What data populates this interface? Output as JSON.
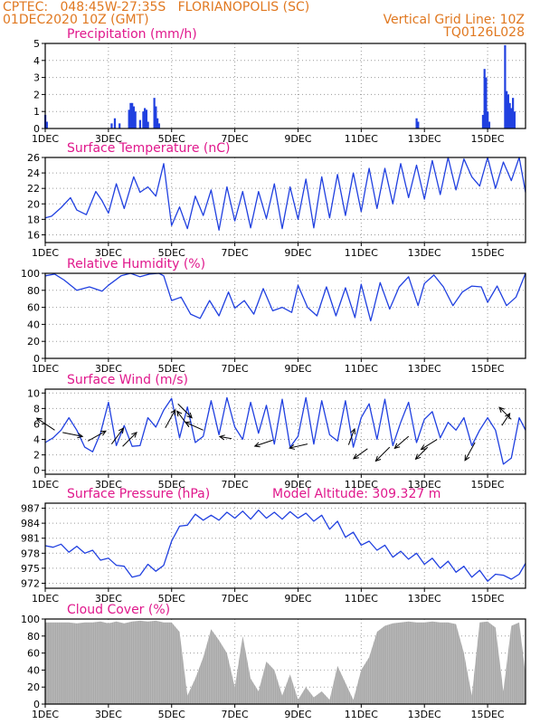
{
  "header": {
    "line1_left": "CPTEC:   048:45W-27:35S   FLORIANOPOLIS (SC)",
    "line2_left": "01DEC2020 10Z (GMT)",
    "line2_right": "Vertical Grid Line: 10Z",
    "line3_right": "TQ0126L028"
  },
  "colors": {
    "header": "#e07820",
    "title": "#e0188c",
    "series": "#2040e0",
    "cloud": "#a8a8a8",
    "grid": "#9a9a9a",
    "axis": "#000000"
  },
  "x_axis": {
    "ticks": [
      "1DEC",
      "3DEC",
      "5DEC",
      "7DEC",
      "9DEC",
      "11DEC",
      "13DEC",
      "15DEC"
    ],
    "tick_days": [
      1,
      3,
      5,
      7,
      9,
      11,
      13,
      15
    ],
    "range_days": [
      1,
      16.2
    ]
  },
  "chart_data": [
    {
      "type": "bar",
      "title": "Precipitation (mm/h)",
      "ylim": [
        0,
        5
      ],
      "yticks": [
        0,
        1,
        2,
        3,
        4,
        5
      ],
      "x": [
        1.0,
        1.05,
        3.1,
        3.2,
        3.35,
        3.65,
        3.7,
        3.75,
        3.8,
        3.85,
        4.0,
        4.1,
        4.15,
        4.2,
        4.25,
        4.45,
        4.5,
        4.55,
        4.6,
        12.75,
        12.8,
        14.85,
        14.9,
        14.95,
        15.0,
        15.05,
        15.55,
        15.6,
        15.65,
        15.7,
        15.75,
        15.8,
        15.85
      ],
      "values": [
        0.8,
        0.4,
        0.3,
        0.6,
        0.3,
        1.1,
        1.5,
        1.5,
        1.3,
        1.0,
        0.5,
        1.0,
        1.2,
        1.1,
        0.4,
        1.8,
        1.3,
        0.6,
        0.3,
        0.6,
        0.4,
        0.8,
        3.5,
        3.0,
        1.0,
        0.4,
        4.9,
        2.2,
        2.0,
        1.5,
        1.2,
        1.8,
        1.0
      ]
    },
    {
      "type": "line",
      "title": "Surface Temperature (nC)",
      "ylim": [
        15,
        26
      ],
      "yticks": [
        16,
        18,
        20,
        22,
        24,
        26
      ],
      "x": [
        1.0,
        1.2,
        1.5,
        1.8,
        2.0,
        2.3,
        2.6,
        2.8,
        3.0,
        3.25,
        3.5,
        3.8,
        4.0,
        4.25,
        4.5,
        4.75,
        5.0,
        5.25,
        5.5,
        5.75,
        6.0,
        6.25,
        6.5,
        6.75,
        7.0,
        7.25,
        7.5,
        7.75,
        8.0,
        8.25,
        8.5,
        8.75,
        9.0,
        9.25,
        9.5,
        9.75,
        10.0,
        10.25,
        10.5,
        10.75,
        11.0,
        11.25,
        11.5,
        11.75,
        12.0,
        12.25,
        12.5,
        12.75,
        13.0,
        13.25,
        13.5,
        13.75,
        14.0,
        14.25,
        14.5,
        14.75,
        15.0,
        15.25,
        15.5,
        15.75,
        16.0,
        16.2
      ],
      "values": [
        18.2,
        18.4,
        19.5,
        20.8,
        19.2,
        18.6,
        21.6,
        20.4,
        18.8,
        22.6,
        19.4,
        23.5,
        21.5,
        22.2,
        21.0,
        25.2,
        17.2,
        19.6,
        16.8,
        21.0,
        18.5,
        21.8,
        16.6,
        22.2,
        17.8,
        21.6,
        16.9,
        21.6,
        18.1,
        22.6,
        16.8,
        22.2,
        18.0,
        23.2,
        16.9,
        23.5,
        18.2,
        23.8,
        18.5,
        24.0,
        19.0,
        24.6,
        19.4,
        24.6,
        20.0,
        25.2,
        20.8,
        25.0,
        20.6,
        25.6,
        21.2,
        26.0,
        21.8,
        25.8,
        23.5,
        22.3,
        26.0,
        22.0,
        25.4,
        23.0,
        26.0,
        21.5
      ]
    },
    {
      "type": "line",
      "title": "Relative Humidity (%)",
      "ylim": [
        0,
        100
      ],
      "yticks": [
        0,
        20,
        40,
        60,
        80,
        100
      ],
      "x": [
        1.0,
        1.3,
        1.6,
        2.0,
        2.4,
        2.8,
        3.0,
        3.4,
        3.7,
        4.0,
        4.3,
        4.6,
        4.75,
        5.0,
        5.3,
        5.6,
        5.9,
        6.2,
        6.5,
        6.8,
        7.0,
        7.3,
        7.6,
        7.9,
        8.2,
        8.5,
        8.8,
        9.0,
        9.3,
        9.6,
        9.9,
        10.2,
        10.5,
        10.8,
        11.0,
        11.3,
        11.6,
        11.9,
        12.2,
        12.5,
        12.8,
        13.0,
        13.3,
        13.6,
        13.9,
        14.2,
        14.5,
        14.8,
        15.0,
        15.3,
        15.6,
        15.9,
        16.2
      ],
      "values": [
        97,
        99,
        92,
        80,
        84,
        79,
        86,
        97,
        101,
        96,
        99,
        100,
        97,
        68,
        72,
        52,
        47,
        68,
        50,
        78,
        59,
        68,
        52,
        82,
        56,
        60,
        54,
        86,
        60,
        50,
        84,
        50,
        83,
        48,
        87,
        44,
        89,
        58,
        84,
        96,
        62,
        88,
        98,
        84,
        62,
        78,
        85,
        84,
        66,
        85,
        62,
        72,
        100
      ]
    },
    {
      "type": "line",
      "title": "Surface Wind (m/s)",
      "ylim": [
        -0.5,
        10.5
      ],
      "yticks": [
        0,
        2,
        4,
        6,
        8,
        10
      ],
      "x": [
        1.0,
        1.25,
        1.5,
        1.75,
        2.0,
        2.25,
        2.5,
        2.75,
        3.0,
        3.25,
        3.5,
        3.75,
        4.0,
        4.25,
        4.5,
        4.75,
        5.0,
        5.25,
        5.5,
        5.75,
        6.0,
        6.25,
        6.5,
        6.75,
        7.0,
        7.25,
        7.5,
        7.75,
        8.0,
        8.25,
        8.5,
        8.75,
        9.0,
        9.25,
        9.5,
        9.75,
        10.0,
        10.25,
        10.5,
        10.75,
        11.0,
        11.25,
        11.5,
        11.75,
        12.0,
        12.25,
        12.5,
        12.75,
        13.0,
        13.25,
        13.5,
        13.75,
        14.0,
        14.25,
        14.5,
        14.75,
        15.0,
        15.25,
        15.5,
        15.75,
        16.0,
        16.2
      ],
      "values": [
        3.6,
        4.2,
        5.2,
        6.8,
        5.2,
        3.0,
        2.4,
        4.8,
        8.8,
        3.2,
        5.8,
        3.1,
        3.2,
        6.8,
        5.6,
        7.8,
        9.3,
        4.2,
        8.2,
        3.6,
        4.4,
        9.0,
        4.6,
        9.4,
        5.6,
        4.0,
        8.8,
        4.8,
        8.4,
        3.4,
        9.2,
        3.0,
        4.4,
        9.4,
        3.4,
        9.0,
        4.6,
        3.8,
        9.0,
        3.0,
        6.8,
        8.6,
        4.0,
        9.2,
        3.2,
        6.2,
        8.8,
        3.6,
        6.6,
        7.6,
        4.2,
        6.2,
        5.2,
        6.8,
        3.2,
        5.2,
        6.8,
        5.2,
        0.8,
        1.6,
        6.8,
        5.2
      ],
      "wind_arrows": [
        {
          "day": 1.3,
          "speed": 5.2,
          "u": -0.9,
          "v": 0.6
        },
        {
          "day": 1.55,
          "speed": 4.9,
          "u": 1.0,
          "v": -0.2
        },
        {
          "day": 2.35,
          "speed": 3.8,
          "u": 0.9,
          "v": 0.5
        },
        {
          "day": 3.1,
          "speed": 3.4,
          "u": 0.6,
          "v": 0.8
        },
        {
          "day": 3.45,
          "speed": 3.1,
          "u": 0.7,
          "v": 0.7
        },
        {
          "day": 4.8,
          "speed": 5.5,
          "u": 0.5,
          "v": 0.9
        },
        {
          "day": 5.2,
          "speed": 8.6,
          "u": 0.7,
          "v": -0.7
        },
        {
          "day": 5.55,
          "speed": 5.6,
          "u": -0.6,
          "v": 0.8
        },
        {
          "day": 6.0,
          "speed": 5.2,
          "u": -0.9,
          "v": 0.4
        },
        {
          "day": 6.9,
          "speed": 4.1,
          "u": -0.6,
          "v": 0.1
        },
        {
          "day": 8.2,
          "speed": 3.9,
          "u": -0.9,
          "v": -0.3
        },
        {
          "day": 9.3,
          "speed": 3.4,
          "u": -0.9,
          "v": -0.2
        },
        {
          "day": 10.6,
          "speed": 3.3,
          "u": 0.3,
          "v": 0.8
        },
        {
          "day": 11.2,
          "speed": 2.8,
          "u": -0.7,
          "v": -0.5
        },
        {
          "day": 11.9,
          "speed": 3.0,
          "u": -0.7,
          "v": -0.7
        },
        {
          "day": 12.5,
          "speed": 4.4,
          "u": -0.7,
          "v": -0.6
        },
        {
          "day": 13.1,
          "speed": 3.0,
          "u": -0.6,
          "v": -0.6
        },
        {
          "day": 13.4,
          "speed": 4.0,
          "u": -0.8,
          "v": -0.5
        },
        {
          "day": 14.6,
          "speed": 3.6,
          "u": -0.5,
          "v": -0.9
        },
        {
          "day": 15.45,
          "speed": 5.8,
          "u": 0.4,
          "v": 0.6
        },
        {
          "day": 15.75,
          "speed": 6.6,
          "u": -0.6,
          "v": 0.6
        }
      ]
    },
    {
      "type": "line",
      "title": "Surface Pressure (hPa)",
      "annotation": "Model Altitude: 309.327 m",
      "ylim": [
        971,
        988
      ],
      "yticks": [
        972,
        975,
        978,
        981,
        984,
        987
      ],
      "x": [
        1.0,
        1.25,
        1.5,
        1.75,
        2.0,
        2.25,
        2.5,
        2.75,
        3.0,
        3.25,
        3.5,
        3.75,
        4.0,
        4.25,
        4.5,
        4.75,
        5.0,
        5.25,
        5.5,
        5.75,
        6.0,
        6.25,
        6.5,
        6.75,
        7.0,
        7.25,
        7.5,
        7.75,
        8.0,
        8.25,
        8.5,
        8.75,
        9.0,
        9.25,
        9.5,
        9.75,
        10.0,
        10.25,
        10.5,
        10.75,
        11.0,
        11.25,
        11.5,
        11.75,
        12.0,
        12.25,
        12.5,
        12.75,
        13.0,
        13.25,
        13.5,
        13.75,
        14.0,
        14.25,
        14.5,
        14.75,
        15.0,
        15.25,
        15.5,
        15.75,
        16.0,
        16.2
      ],
      "values": [
        979.5,
        979.2,
        979.8,
        978.2,
        979.4,
        978.0,
        978.6,
        976.6,
        977.0,
        975.6,
        975.4,
        973.2,
        973.6,
        975.8,
        974.4,
        975.6,
        980.4,
        983.4,
        983.6,
        985.8,
        984.6,
        985.6,
        984.6,
        986.2,
        985.0,
        986.4,
        984.8,
        986.6,
        985.0,
        986.2,
        984.8,
        986.3,
        985.0,
        986.0,
        984.4,
        985.6,
        982.8,
        984.4,
        981.2,
        982.2,
        979.6,
        980.4,
        978.6,
        979.6,
        977.2,
        978.4,
        976.8,
        978.0,
        975.8,
        977.0,
        975.0,
        976.4,
        974.2,
        975.4,
        973.2,
        974.6,
        972.4,
        973.8,
        973.6,
        972.8,
        973.8,
        976.0
      ]
    },
    {
      "type": "area",
      "title": "Cloud Cover (%)",
      "ylim": [
        0,
        100
      ],
      "yticks": [
        0,
        20,
        40,
        60,
        80,
        100
      ],
      "x": [
        1.0,
        1.25,
        1.5,
        1.75,
        2.0,
        2.25,
        2.5,
        2.75,
        3.0,
        3.25,
        3.5,
        3.75,
        4.0,
        4.25,
        4.5,
        4.75,
        5.0,
        5.25,
        5.5,
        5.75,
        6.0,
        6.25,
        6.5,
        6.75,
        7.0,
        7.25,
        7.5,
        7.75,
        8.0,
        8.25,
        8.5,
        8.75,
        9.0,
        9.25,
        9.5,
        9.75,
        10.0,
        10.25,
        10.5,
        10.75,
        11.0,
        11.25,
        11.5,
        11.75,
        12.0,
        12.25,
        12.5,
        12.75,
        13.0,
        13.25,
        13.5,
        13.75,
        14.0,
        14.25,
        14.5,
        14.75,
        15.0,
        15.25,
        15.5,
        15.75,
        16.0,
        16.2
      ],
      "values": [
        96,
        96,
        96,
        96,
        95,
        96,
        96,
        97,
        95,
        97,
        95,
        97,
        98,
        97,
        98,
        96,
        96,
        85,
        10,
        30,
        55,
        88,
        75,
        60,
        20,
        80,
        30,
        15,
        50,
        40,
        10,
        35,
        5,
        20,
        8,
        15,
        5,
        45,
        25,
        5,
        40,
        55,
        85,
        92,
        95,
        96,
        97,
        96,
        96,
        97,
        96,
        96,
        94,
        60,
        10,
        96,
        97,
        90,
        15,
        92,
        96,
        35
      ]
    }
  ]
}
